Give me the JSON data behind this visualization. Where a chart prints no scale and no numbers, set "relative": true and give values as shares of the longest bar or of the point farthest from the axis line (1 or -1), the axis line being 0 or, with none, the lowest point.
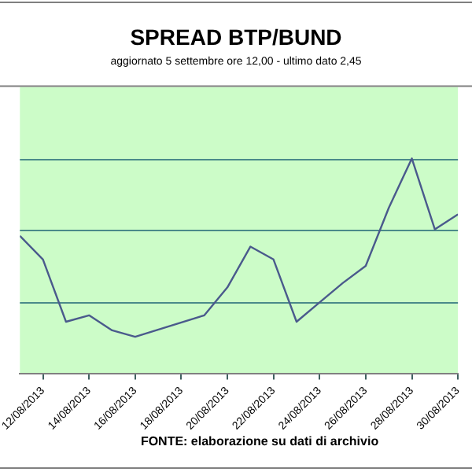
{
  "chart_data": {
    "type": "line",
    "title": "SPREAD BTP/BUND",
    "subtitle": "aggiornato 5 settembre ore 12,00 - ultimo dato 2,45",
    "annotations": [
      "FONTE: elaborazione su dati di archivio"
    ],
    "x": [
      "2013-08-11",
      "2013-08-12",
      "2013-08-13",
      "2013-08-14",
      "2013-08-15",
      "2013-08-16",
      "2013-08-19",
      "2013-08-20",
      "2013-08-21",
      "2013-08-22",
      "2013-08-23",
      "2013-08-24",
      "2013-08-25",
      "2013-08-26",
      "2013-08-27",
      "2013-08-28",
      "2013-08-29",
      "2013-08-30"
    ],
    "series": [
      {
        "color": "#4a5a8c",
        "values": [
          0.64,
          0.53,
          0.24,
          0.27,
          0.2,
          0.17,
          0.27,
          0.4,
          0.59,
          0.53,
          0.24,
          0.33,
          0.42,
          0.5,
          0.77,
          1.0,
          0.67,
          0.74
        ]
      }
    ],
    "relative": true,
    "xlim": [
      "2013-08-11",
      "2013-08-30"
    ],
    "xticks": [
      {
        "value": "2013-08-12",
        "label": "12/08/2013"
      },
      {
        "value": "2013-08-14",
        "label": "14/08/2013"
      },
      {
        "value": "2013-08-16",
        "label": "16/08/2013"
      },
      {
        "value": "2013-08-18",
        "label": "18/08/2013"
      },
      {
        "value": "2013-08-20",
        "label": "20/08/2013"
      },
      {
        "value": "2013-08-22",
        "label": "22/08/2013"
      },
      {
        "value": "2013-08-24",
        "label": "24/08/2013"
      },
      {
        "value": "2013-08-26",
        "label": "26/08/2013"
      },
      {
        "value": "2013-08-28",
        "label": "28/08/2013"
      },
      {
        "value": "2013-08-30",
        "label": "30/08/2013"
      }
    ],
    "ref_lines": [
      {
        "axis": "y",
        "value": 0.33,
        "color": "#4a8a8a"
      },
      {
        "axis": "y",
        "value": 0.67,
        "color": "#4a8a8a"
      },
      {
        "axis": "y",
        "value": 1.0,
        "color": "#4a8a8a"
      }
    ],
    "legend": false,
    "marker": "none",
    "line_style": "solid"
  }
}
